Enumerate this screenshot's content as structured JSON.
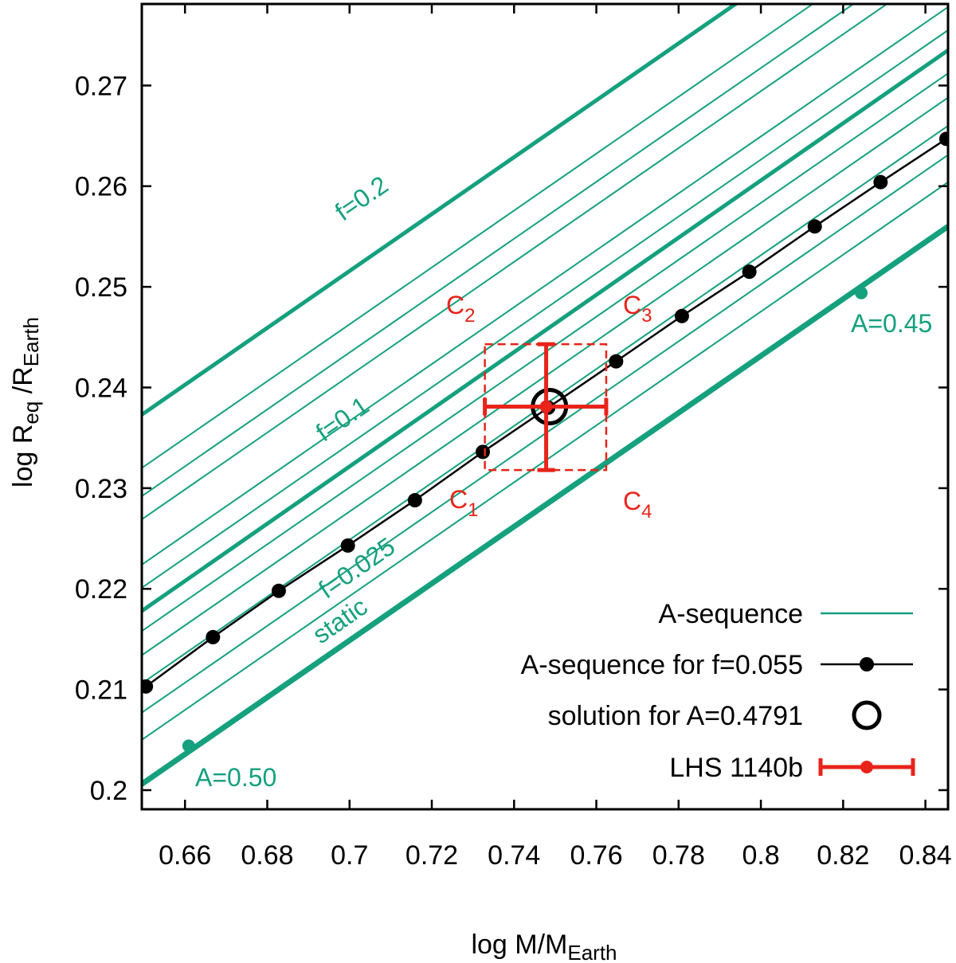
{
  "colors": {
    "green": "#15a07e",
    "red": "#e8231a",
    "black": "#000000"
  },
  "chart_data": {
    "type": "line",
    "xlabel_main": "log M/M",
    "xlabel_sub": "Earth",
    "ylabel_main": "log R",
    "ylabel_sub1": "eq",
    "ylabel_mid": " /R",
    "ylabel_sub2": "Earth",
    "xlim": [
      0.6495,
      0.8455
    ],
    "ylim": [
      0.1981,
      0.2781
    ],
    "xticks": [
      0.66,
      0.68,
      0.7,
      0.72,
      0.74,
      0.76,
      0.78,
      0.8,
      0.82,
      0.84
    ],
    "xtick_labels": [
      "0.66",
      "0.68",
      "0.7",
      "0.72",
      "0.74",
      "0.76",
      "0.78",
      "0.8",
      "0.82",
      "0.84"
    ],
    "yticks": [
      0.2,
      0.21,
      0.22,
      0.23,
      0.24,
      0.25,
      0.26,
      0.27
    ],
    "ytick_labels": [
      "0.2",
      "0.21",
      "0.22",
      "0.23",
      "0.24",
      "0.25",
      "0.26",
      "0.27"
    ],
    "series_green": [
      {
        "name": "static",
        "y0": 0.2006,
        "y1": 0.256,
        "heavy": true
      },
      {
        "name": "",
        "y0": 0.205,
        "y1": 0.2604,
        "heavy": false
      },
      {
        "name": "f=0.025",
        "y0": 0.2077,
        "y1": 0.2631,
        "heavy": false
      },
      {
        "name": "",
        "y0": 0.2106,
        "y1": 0.266,
        "heavy": false
      },
      {
        "name": "",
        "y0": 0.2134,
        "y1": 0.2688,
        "heavy": false
      },
      {
        "name": "",
        "y0": 0.2158,
        "y1": 0.2712,
        "heavy": false
      },
      {
        "name": "f=0.1",
        "y0": 0.2178,
        "y1": 0.2735,
        "heavy": true
      },
      {
        "name": "",
        "y0": 0.2201,
        "y1": 0.2755,
        "heavy": false
      },
      {
        "name": "",
        "y0": 0.2224,
        "y1": 0.2778,
        "heavy": false
      },
      {
        "name": "",
        "y0": 0.2269,
        "y1": 0.2823,
        "heavy": false
      },
      {
        "name": "",
        "y0": 0.2292,
        "y1": 0.2846,
        "heavy": false
      },
      {
        "name": "",
        "y0": 0.232,
        "y1": 0.2874,
        "heavy": false
      },
      {
        "name": "f=0.2",
        "y0": 0.2373,
        "y1": 0.2927,
        "heavy": true
      }
    ],
    "green_x0": 0.6495,
    "green_x1": 0.8455,
    "a_markers": [
      {
        "label": "A=0.50",
        "x": 0.6609,
        "y": 0.2044
      },
      {
        "label": "A=0.45",
        "x": 0.8244,
        "y": 0.2494
      }
    ],
    "black_series": {
      "name": "A-sequence for f=0.055",
      "x": [
        0.6505,
        0.6668,
        0.6828,
        0.6996,
        0.7159,
        0.7324,
        0.7483,
        0.7648,
        0.7808,
        0.7972,
        0.8131,
        0.8291,
        0.8451
      ],
      "y": [
        0.2103,
        0.2152,
        0.2198,
        0.2243,
        0.2288,
        0.2336,
        0.238,
        0.2426,
        0.2471,
        0.2515,
        0.256,
        0.2604,
        0.2647
      ]
    },
    "solution": {
      "label": "solution for A=0.4791",
      "x": 0.7486,
      "y": 0.2381
    },
    "measurement": {
      "label": "LHS 1140b",
      "x": 0.7478,
      "y": 0.2381,
      "xerr_low": 0.7329,
      "xerr_high": 0.7624,
      "yerr_low": 0.2318,
      "yerr_high": 0.2443
    },
    "corners": [
      {
        "name": "C",
        "sub": "1",
        "x": 0.7329,
        "y": 0.2318
      },
      {
        "name": "C",
        "sub": "2",
        "x": 0.7329,
        "y": 0.2443
      },
      {
        "name": "C",
        "sub": "3",
        "x": 0.7624,
        "y": 0.2443
      },
      {
        "name": "C",
        "sub": "4",
        "x": 0.7624,
        "y": 0.2318
      }
    ],
    "annotations": [
      {
        "text": "f=0.2"
      },
      {
        "text": "f=0.1"
      },
      {
        "text": "f=0.025"
      },
      {
        "text": "static"
      },
      {
        "text": "A=0.50"
      },
      {
        "text": "A=0.45"
      }
    ],
    "legend": [
      {
        "label": "A-sequence"
      },
      {
        "label": "A-sequence for f=0.055"
      },
      {
        "label": "solution for A=0.4791"
      },
      {
        "label": "LHS 1140b"
      }
    ]
  }
}
